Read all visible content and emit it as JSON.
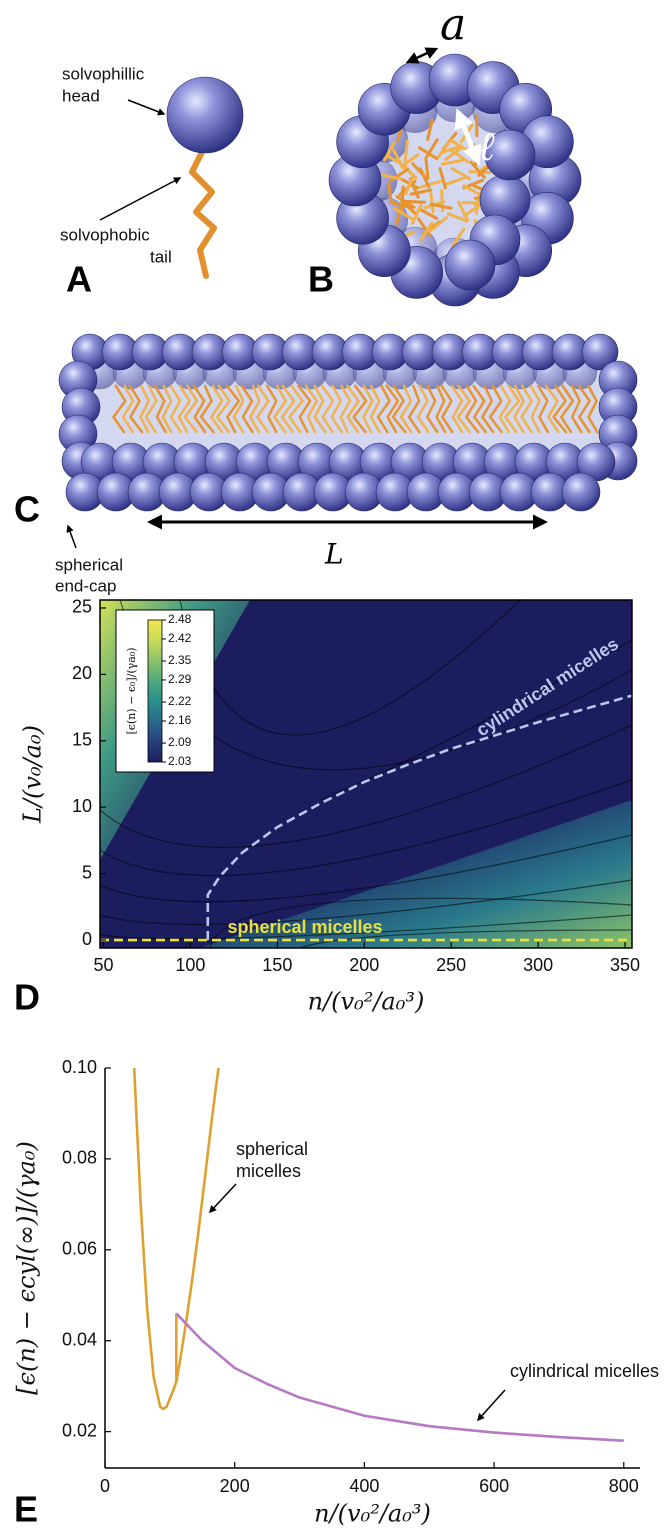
{
  "panels": {
    "A": {
      "label": "A",
      "head_label": [
        "solvophillic",
        "head"
      ],
      "tail_label": [
        "solvophobic",
        "tail"
      ]
    },
    "B": {
      "label": "B",
      "head_size": "a",
      "tail_length": "ℓ"
    },
    "C": {
      "label": "C",
      "end_cap_label": [
        "spherical",
        "end-cap"
      ],
      "length": "L"
    }
  },
  "chart_data": [
    {
      "type": "contour",
      "panel_label": "D",
      "x_label": "n/(v₀²/a₀³)",
      "y_label": "L/(v₀/a₀)",
      "xlim": [
        48,
        354
      ],
      "ylim": [
        -0.6,
        25.6
      ],
      "xticks": [
        50,
        100,
        150,
        200,
        250,
        300,
        350
      ],
      "yticks": [
        0,
        5,
        10,
        15,
        20,
        25
      ],
      "colorbar": {
        "label": "[ϵ(n) − ϵ₀]/(γa₀)",
        "zlim": [
          2.03,
          2.48
        ],
        "zticks": [
          2.03,
          2.09,
          2.16,
          2.22,
          2.29,
          2.35,
          2.42,
          2.48
        ],
        "colors": [
          "#1c1d5e",
          "#26407c",
          "#2a6a8c",
          "#2b8f8a",
          "#4fa87c",
          "#8cc36a",
          "#c9dc58",
          "#f1e74e"
        ]
      },
      "series": [
        {
          "name": "cylindrical micelles",
          "color": "#bac7ec",
          "dashed": true,
          "x": [
            110,
            110,
            117,
            130,
            150,
            175,
            200,
            225,
            250,
            300,
            354
          ],
          "values": [
            0,
            3.4,
            4.8,
            6.6,
            8.5,
            10.3,
            11.9,
            13.2,
            14.4,
            16.4,
            18.4
          ]
        },
        {
          "name": "spherical micelles",
          "color": "#e8e03c",
          "dashed": true,
          "x": [
            48,
            354
          ],
          "values": [
            0,
            0
          ]
        }
      ]
    },
    {
      "type": "line",
      "panel_label": "E",
      "x_label": "n/(v₀²/a₀³)",
      "y_label": "[ϵ(n) − ϵcyl(∞)]/(γa₀)",
      "xlim": [
        0,
        825
      ],
      "ylim": [
        0.012,
        0.1
      ],
      "xticks": [
        0,
        200,
        400,
        600,
        800
      ],
      "yticks": [
        0.02,
        0.04,
        0.06,
        0.08,
        {
          "value": 0.1,
          "label": "0.10"
        }
      ],
      "annotations": [
        [
          "spherical",
          "micelles"
        ],
        [
          "cylindrical micelles"
        ]
      ],
      "series": [
        {
          "color": "#e0a030",
          "x": [
            45,
            55,
            65,
            75,
            85,
            90,
            95,
            105,
            110,
            115,
            125,
            135,
            145,
            155,
            165,
            175
          ],
          "values": [
            0.1,
            0.07,
            0.047,
            0.032,
            0.0255,
            0.025,
            0.0255,
            0.029,
            0.031,
            0.035,
            0.044,
            0.054,
            0.065,
            0.077,
            0.089,
            0.1
          ]
        },
        {
          "color": "#e0a030",
          "x": [
            110,
            110
          ],
          "values": [
            0.031,
            0.046
          ]
        },
        {
          "color": "#b779c4",
          "x": [
            110,
            150,
            200,
            250,
            300,
            400,
            500,
            600,
            700,
            800
          ],
          "values": [
            0.046,
            0.04,
            0.034,
            0.0305,
            0.0275,
            0.0235,
            0.0212,
            0.0198,
            0.0188,
            0.018
          ]
        }
      ]
    }
  ]
}
